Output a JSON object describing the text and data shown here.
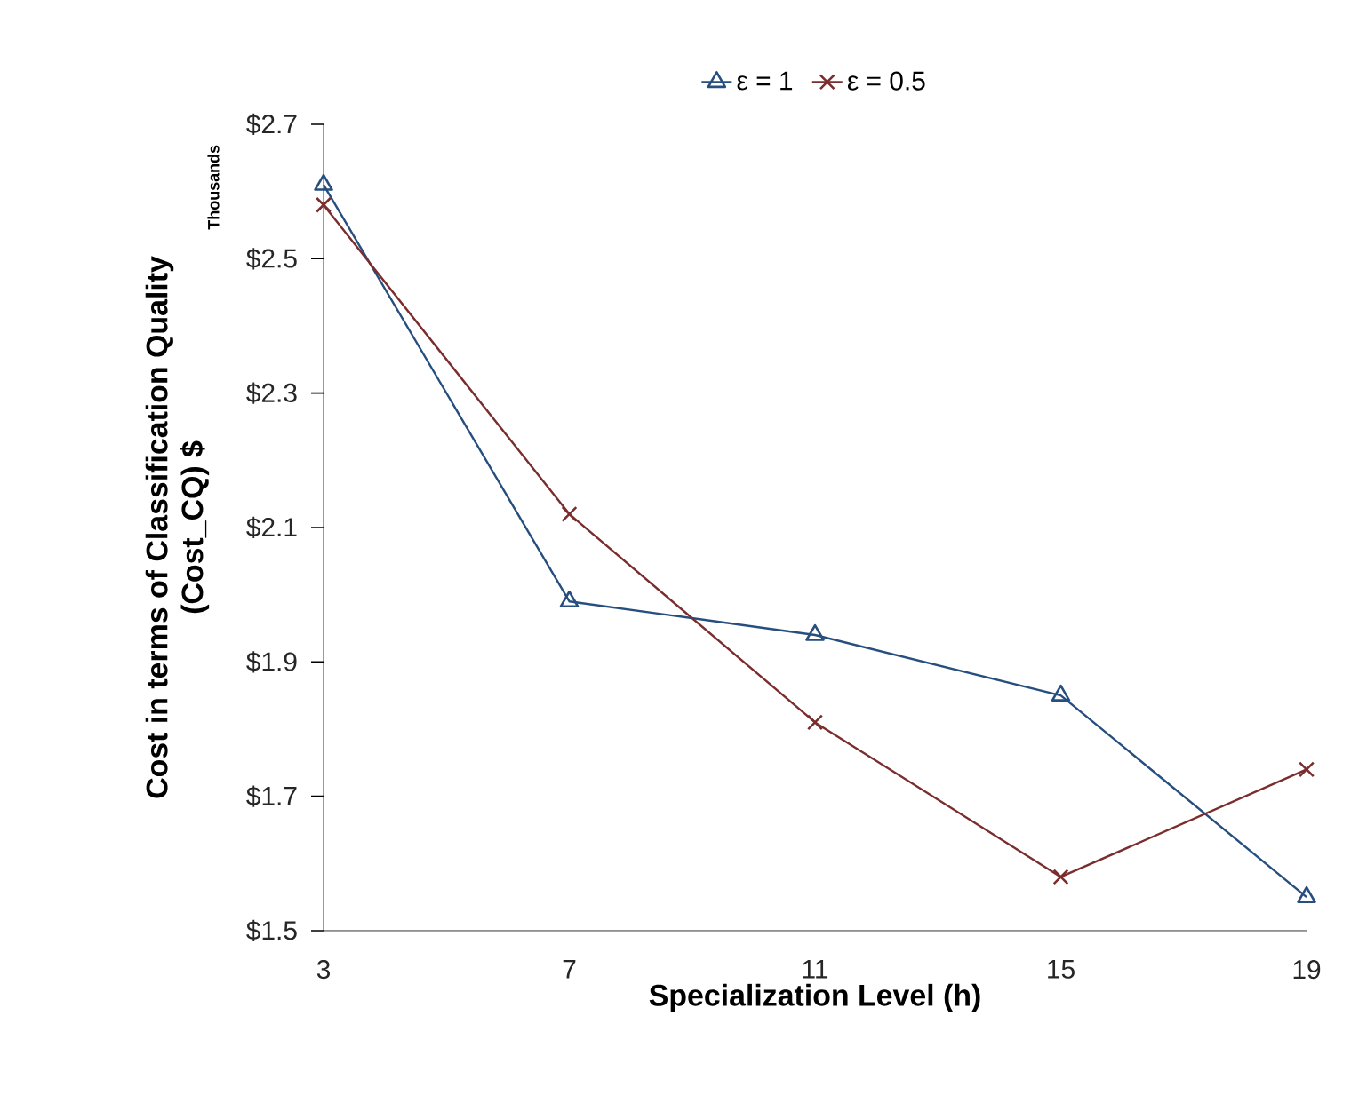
{
  "chart_data": {
    "type": "line",
    "xlabel": "Specialization Level (h)",
    "ylabel": "Cost in terms of Classification Quality\n(Cost_CQ) $",
    "annotations": [
      "Thousands"
    ],
    "x": [
      3,
      7,
      11,
      15,
      19
    ],
    "series": [
      {
        "name": "ε = 1",
        "color": "#264e7e",
        "marker": "triangle",
        "values": [
          2.61,
          1.99,
          1.94,
          1.85,
          1.55
        ]
      },
      {
        "name": "ε = 0.5",
        "color": "#7b2d2d",
        "marker": "cross",
        "values": [
          2.58,
          2.12,
          1.81,
          1.58,
          1.74
        ]
      }
    ],
    "xlim": [
      3,
      19
    ],
    "xticks": [
      3,
      7,
      11,
      15,
      19
    ],
    "ylim": [
      1.5,
      2.7
    ],
    "yticks": [
      {
        "value": 1.5,
        "label": "$1.5"
      },
      {
        "value": 1.7,
        "label": "$1.7"
      },
      {
        "value": 1.9,
        "label": "$1.9"
      },
      {
        "value": 2.1,
        "label": "$2.1"
      },
      {
        "value": 2.3,
        "label": "$2.3"
      },
      {
        "value": 2.5,
        "label": "$2.5"
      },
      {
        "value": 2.7,
        "label": "$2.7"
      }
    ],
    "grid": false,
    "legend": "top",
    "line_style": "solid"
  }
}
